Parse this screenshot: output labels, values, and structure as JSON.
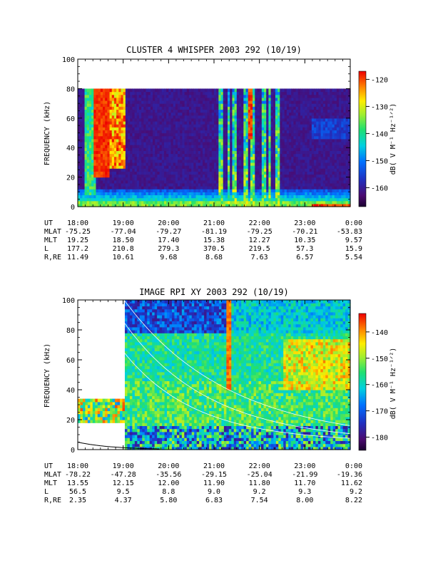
{
  "chart_data": [
    {
      "type": "heatmap",
      "title": "CLUSTER 4 WHISPER 2003 292 (10/19)",
      "ylabel": "FREQUENCY (kHz)",
      "ylim": [
        0,
        100
      ],
      "yticks": [
        "0",
        "20",
        "40",
        "60",
        "80",
        "100"
      ],
      "data_max_frequency_khz": 80,
      "colorbar": {
        "label": "dB( V M⁻¹ Hz⁻¹ᐟ²)",
        "range": [
          -167,
          -117
        ],
        "ticks": [
          "-120",
          "-130",
          "-140",
          "-150",
          "-160"
        ]
      },
      "time_ticks": [
        "18:00",
        "19:00",
        "20:00",
        "21:00",
        "22:00",
        "23:00",
        "0:00"
      ],
      "ephemeris": [
        {
          "label": "UT",
          "values": [
            "18:00",
            "19:00",
            "20:00",
            "21:00",
            "22:00",
            "23:00",
            "0:00"
          ]
        },
        {
          "label": "MLAT",
          "values": [
            "-75.25",
            "-77.04",
            "-79.27",
            "-81.19",
            "-79.25",
            "-70.21",
            "-53.83"
          ]
        },
        {
          "label": "MLT",
          "values": [
            "19.25",
            "18.50",
            "17.40",
            "15.38",
            "12.27",
            "10.35",
            "9.57"
          ]
        },
        {
          "label": "L",
          "values": [
            "177.2",
            "210.8",
            "279.3",
            "370.5",
            "219.5",
            "57.3",
            "15.9"
          ]
        },
        {
          "label": "R,RE",
          "values": [
            "11.49",
            "10.61",
            "9.68",
            "8.68",
            "7.63",
            "6.57",
            "5.54"
          ]
        }
      ]
    },
    {
      "type": "heatmap",
      "title": "IMAGE RPI XY 2003 292 (10/19)",
      "ylabel": "FREQUENCY (kHz)",
      "ylim": [
        0,
        100
      ],
      "yticks": [
        "0",
        "20",
        "40",
        "60",
        "80",
        "100"
      ],
      "colorbar": {
        "label": "dB( V M⁻¹ Hz⁻¹ᐟ²)",
        "range": [
          -185,
          -133
        ],
        "ticks": [
          "-140",
          "-150",
          "-160",
          "-170",
          "-180"
        ]
      },
      "time_ticks": [
        "18:00",
        "19:00",
        "20:00",
        "21:00",
        "22:00",
        "23:00",
        "0:00"
      ],
      "ephemeris": [
        {
          "label": "UT",
          "values": [
            "18:00",
            "19:00",
            "20:00",
            "21:00",
            "22:00",
            "23:00",
            "0:00"
          ]
        },
        {
          "label": "MLAT",
          "values": [
            "-78.22",
            "-47.28",
            "-35.56",
            "-29.15",
            "-25.04",
            "-21.99",
            "-19.36"
          ]
        },
        {
          "label": "MLT",
          "values": [
            "13.55",
            "12.15",
            "12.00",
            "11.90",
            "11.80",
            "11.70",
            "11.62"
          ]
        },
        {
          "label": "L",
          "values": [
            "56.5",
            "9.5",
            "8.8",
            "9.0",
            "9.2",
            "9.3",
            "9.2"
          ]
        },
        {
          "label": "R,RE",
          "values": [
            "2.35",
            "4.37",
            "5.80",
            "6.83",
            "7.54",
            "8.00",
            "8.22"
          ]
        }
      ]
    }
  ]
}
